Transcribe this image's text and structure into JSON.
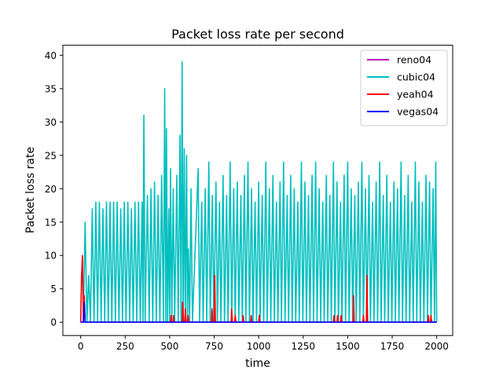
{
  "chart_data": {
    "type": "line",
    "title": "Packet loss rate per second",
    "xlabel": "time",
    "ylabel": "Packet loss rate",
    "xlim": [
      -100,
      2090
    ],
    "ylim": [
      -2,
      41.5
    ],
    "xticks": [
      0,
      250,
      500,
      750,
      1000,
      1250,
      1500,
      1750,
      2000
    ],
    "yticks": [
      0,
      5,
      10,
      15,
      20,
      25,
      30,
      35,
      40
    ],
    "grid": false,
    "legend_position": "upper right",
    "series": [
      {
        "name": "reno04",
        "color": "#bf00bf",
        "points": [
          [
            0,
            0
          ],
          [
            2000,
            0
          ]
        ]
      },
      {
        "name": "cubic04",
        "color": "#00bfbf",
        "points": [
          [
            0,
            0
          ],
          [
            15,
            0
          ],
          [
            25,
            15
          ],
          [
            35,
            0
          ],
          [
            45,
            7
          ],
          [
            55,
            0
          ],
          [
            65,
            17
          ],
          [
            75,
            0
          ],
          [
            85,
            18
          ],
          [
            95,
            0
          ],
          [
            105,
            18
          ],
          [
            115,
            0
          ],
          [
            125,
            17
          ],
          [
            135,
            0
          ],
          [
            145,
            18
          ],
          [
            155,
            0
          ],
          [
            165,
            18
          ],
          [
            175,
            0
          ],
          [
            185,
            18
          ],
          [
            195,
            0
          ],
          [
            205,
            18
          ],
          [
            215,
            0
          ],
          [
            225,
            17
          ],
          [
            235,
            0
          ],
          [
            245,
            18
          ],
          [
            255,
            0
          ],
          [
            265,
            18
          ],
          [
            275,
            0
          ],
          [
            285,
            17
          ],
          [
            295,
            0
          ],
          [
            305,
            18
          ],
          [
            315,
            0
          ],
          [
            325,
            18
          ],
          [
            335,
            0
          ],
          [
            345,
            18
          ],
          [
            350,
            0
          ],
          [
            355,
            31
          ],
          [
            362,
            0
          ],
          [
            375,
            19
          ],
          [
            385,
            0
          ],
          [
            395,
            20
          ],
          [
            405,
            0
          ],
          [
            415,
            21
          ],
          [
            425,
            0
          ],
          [
            435,
            19
          ],
          [
            445,
            0
          ],
          [
            455,
            22
          ],
          [
            465,
            0
          ],
          [
            472,
            35
          ],
          [
            478,
            0
          ],
          [
            482,
            29
          ],
          [
            488,
            0
          ],
          [
            495,
            17
          ],
          [
            500,
            0
          ],
          [
            505,
            23
          ],
          [
            512,
            0
          ],
          [
            520,
            20
          ],
          [
            528,
            0
          ],
          [
            540,
            22
          ],
          [
            548,
            0
          ],
          [
            558,
            28
          ],
          [
            564,
            0
          ],
          [
            570,
            39
          ],
          [
            576,
            0
          ],
          [
            582,
            26
          ],
          [
            588,
            0
          ],
          [
            595,
            25
          ],
          [
            600,
            0
          ],
          [
            605,
            11
          ],
          [
            612,
            0
          ],
          [
            620,
            20
          ],
          [
            628,
            0
          ],
          [
            660,
            23
          ],
          [
            668,
            0
          ],
          [
            680,
            18
          ],
          [
            688,
            0
          ],
          [
            700,
            20
          ],
          [
            708,
            0
          ],
          [
            720,
            24
          ],
          [
            728,
            0
          ],
          [
            740,
            19
          ],
          [
            748,
            0
          ],
          [
            760,
            21
          ],
          [
            768,
            0
          ],
          [
            780,
            18
          ],
          [
            788,
            0
          ],
          [
            800,
            22
          ],
          [
            808,
            0
          ],
          [
            820,
            19
          ],
          [
            828,
            0
          ],
          [
            840,
            24
          ],
          [
            848,
            0
          ],
          [
            860,
            20
          ],
          [
            868,
            0
          ],
          [
            880,
            21
          ],
          [
            888,
            0
          ],
          [
            900,
            19
          ],
          [
            908,
            0
          ],
          [
            920,
            22
          ],
          [
            928,
            0
          ],
          [
            940,
            24
          ],
          [
            948,
            0
          ],
          [
            960,
            20
          ],
          [
            968,
            0
          ],
          [
            980,
            18
          ],
          [
            988,
            0
          ],
          [
            1000,
            21
          ],
          [
            1008,
            0
          ],
          [
            1020,
            19
          ],
          [
            1028,
            0
          ],
          [
            1040,
            24
          ],
          [
            1048,
            0
          ],
          [
            1060,
            20
          ],
          [
            1068,
            0
          ],
          [
            1080,
            22
          ],
          [
            1088,
            0
          ],
          [
            1100,
            18
          ],
          [
            1108,
            0
          ],
          [
            1120,
            21
          ],
          [
            1128,
            0
          ],
          [
            1140,
            24
          ],
          [
            1148,
            0
          ],
          [
            1160,
            19
          ],
          [
            1168,
            0
          ],
          [
            1180,
            22
          ],
          [
            1188,
            0
          ],
          [
            1200,
            20
          ],
          [
            1208,
            0
          ],
          [
            1220,
            18
          ],
          [
            1228,
            0
          ],
          [
            1240,
            24
          ],
          [
            1248,
            0
          ],
          [
            1260,
            21
          ],
          [
            1268,
            0
          ],
          [
            1280,
            19
          ],
          [
            1288,
            0
          ],
          [
            1300,
            22
          ],
          [
            1308,
            0
          ],
          [
            1320,
            24
          ],
          [
            1328,
            0
          ],
          [
            1340,
            20
          ],
          [
            1348,
            0
          ],
          [
            1360,
            18
          ],
          [
            1368,
            0
          ],
          [
            1380,
            22
          ],
          [
            1388,
            0
          ],
          [
            1400,
            19
          ],
          [
            1408,
            0
          ],
          [
            1420,
            24
          ],
          [
            1428,
            0
          ],
          [
            1440,
            21
          ],
          [
            1448,
            0
          ],
          [
            1460,
            18
          ],
          [
            1468,
            0
          ],
          [
            1480,
            22
          ],
          [
            1488,
            0
          ],
          [
            1500,
            24
          ],
          [
            1508,
            0
          ],
          [
            1520,
            20
          ],
          [
            1528,
            0
          ],
          [
            1540,
            19
          ],
          [
            1548,
            0
          ],
          [
            1560,
            21
          ],
          [
            1568,
            0
          ],
          [
            1580,
            24
          ],
          [
            1588,
            0
          ],
          [
            1600,
            20
          ],
          [
            1608,
            0
          ],
          [
            1620,
            22
          ],
          [
            1628,
            0
          ],
          [
            1640,
            18
          ],
          [
            1648,
            0
          ],
          [
            1660,
            21
          ],
          [
            1668,
            0
          ],
          [
            1680,
            24
          ],
          [
            1688,
            0
          ],
          [
            1700,
            19
          ],
          [
            1708,
            0
          ],
          [
            1720,
            22
          ],
          [
            1728,
            0
          ],
          [
            1740,
            18
          ],
          [
            1748,
            0
          ],
          [
            1760,
            21
          ],
          [
            1768,
            0
          ],
          [
            1780,
            20
          ],
          [
            1788,
            0
          ],
          [
            1800,
            24
          ],
          [
            1808,
            0
          ],
          [
            1820,
            19
          ],
          [
            1828,
            0
          ],
          [
            1840,
            22
          ],
          [
            1848,
            0
          ],
          [
            1860,
            18
          ],
          [
            1868,
            0
          ],
          [
            1880,
            24
          ],
          [
            1888,
            0
          ],
          [
            1900,
            21
          ],
          [
            1908,
            0
          ],
          [
            1920,
            18
          ],
          [
            1928,
            0
          ],
          [
            1940,
            22
          ],
          [
            1948,
            0
          ],
          [
            1960,
            21
          ],
          [
            1968,
            0
          ],
          [
            1980,
            20
          ],
          [
            1988,
            0
          ],
          [
            1995,
            24
          ],
          [
            2000,
            0
          ]
        ]
      },
      {
        "name": "yeah04",
        "color": "#ff0000",
        "points": [
          [
            0,
            0
          ],
          [
            5,
            7
          ],
          [
            10,
            10
          ],
          [
            15,
            0
          ],
          [
            20,
            4
          ],
          [
            25,
            0
          ],
          [
            505,
            0
          ],
          [
            508,
            1
          ],
          [
            512,
            0
          ],
          [
            520,
            0
          ],
          [
            522,
            1
          ],
          [
            526,
            0
          ],
          [
            570,
            0
          ],
          [
            573,
            3
          ],
          [
            578,
            0
          ],
          [
            585,
            0
          ],
          [
            588,
            2
          ],
          [
            592,
            0
          ],
          [
            600,
            0
          ],
          [
            603,
            1
          ],
          [
            607,
            0
          ],
          [
            735,
            0
          ],
          [
            738,
            2
          ],
          [
            742,
            0
          ],
          [
            750,
            0
          ],
          [
            753,
            7
          ],
          [
            757,
            0
          ],
          [
            845,
            0
          ],
          [
            848,
            2
          ],
          [
            852,
            0
          ],
          [
            865,
            0
          ],
          [
            868,
            1
          ],
          [
            872,
            0
          ],
          [
            910,
            0
          ],
          [
            913,
            1
          ],
          [
            917,
            0
          ],
          [
            955,
            0
          ],
          [
            958,
            1
          ],
          [
            962,
            0
          ],
          [
            1000,
            0
          ],
          [
            1003,
            1
          ],
          [
            1007,
            0
          ],
          [
            1420,
            0
          ],
          [
            1423,
            1
          ],
          [
            1427,
            0
          ],
          [
            1440,
            0
          ],
          [
            1443,
            1
          ],
          [
            1447,
            0
          ],
          [
            1460,
            0
          ],
          [
            1463,
            1
          ],
          [
            1467,
            0
          ],
          [
            1530,
            0
          ],
          [
            1533,
            4
          ],
          [
            1537,
            0
          ],
          [
            1585,
            0
          ],
          [
            1588,
            1
          ],
          [
            1592,
            0
          ],
          [
            1605,
            0
          ],
          [
            1608,
            7
          ],
          [
            1612,
            0
          ],
          [
            1950,
            0
          ],
          [
            1953,
            1
          ],
          [
            1957,
            0
          ],
          [
            1965,
            0
          ],
          [
            1968,
            1
          ],
          [
            1972,
            0
          ],
          [
            2000,
            0
          ]
        ]
      },
      {
        "name": "vegas04",
        "color": "#0000ff",
        "points": [
          [
            0,
            0
          ],
          [
            15,
            0
          ],
          [
            20,
            3
          ],
          [
            25,
            0
          ],
          [
            2000,
            0
          ]
        ]
      }
    ]
  }
}
